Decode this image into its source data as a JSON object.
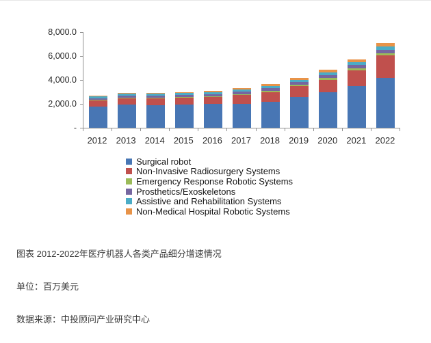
{
  "captions": {
    "title": "图表 2012-2022年医疗机器人各类产品细分增速情况",
    "unit": "单位：百万美元",
    "source": "数据来源：中投顾问产业研究中心"
  },
  "chart_data": {
    "type": "bar",
    "stacked": true,
    "title": "",
    "xlabel": "",
    "ylabel": "",
    "grid": false,
    "legend_position": "bottom-left",
    "ylim": [
      0,
      8000
    ],
    "ytick_values": [
      0,
      2000,
      4000,
      6000,
      8000
    ],
    "ytick_labels": [
      "-",
      "2,000.0",
      "4,000.0",
      "6,000.0",
      "8,000.0"
    ],
    "categories": [
      "2012",
      "2013",
      "2014",
      "2015",
      "2016",
      "2017",
      "2018",
      "2019",
      "2020",
      "2021",
      "2022"
    ],
    "series": [
      {
        "name": "Surgical robot",
        "color": "#4876B4",
        "values": [
          1750,
          1950,
          1900,
          1950,
          2000,
          2020,
          2200,
          2590,
          2970,
          3500,
          4200
        ]
      },
      {
        "name": "Non-Invasive Radiosurgery Systems",
        "color": "#C0504D",
        "values": [
          520,
          530,
          560,
          540,
          560,
          700,
          800,
          880,
          1050,
          1320,
          1850
        ]
      },
      {
        "name": "Emergency Response Robotic Systems",
        "color": "#9BBB59",
        "values": [
          55,
          60,
          65,
          70,
          75,
          85,
          95,
          110,
          130,
          160,
          190
        ]
      },
      {
        "name": "Prosthetics/Exoskeletons",
        "color": "#7566A0",
        "values": [
          150,
          160,
          170,
          180,
          190,
          200,
          210,
          230,
          250,
          260,
          270
        ]
      },
      {
        "name": "Assistive and Rehabilitation Systems",
        "color": "#4BACC6",
        "values": [
          130,
          140,
          150,
          160,
          170,
          185,
          200,
          215,
          230,
          250,
          270
        ]
      },
      {
        "name": "Non-Medical Hospital Robotic Systems",
        "color": "#E89348",
        "values": [
          70,
          80,
          90,
          100,
          120,
          140,
          155,
          175,
          200,
          250,
          300
        ]
      }
    ]
  }
}
